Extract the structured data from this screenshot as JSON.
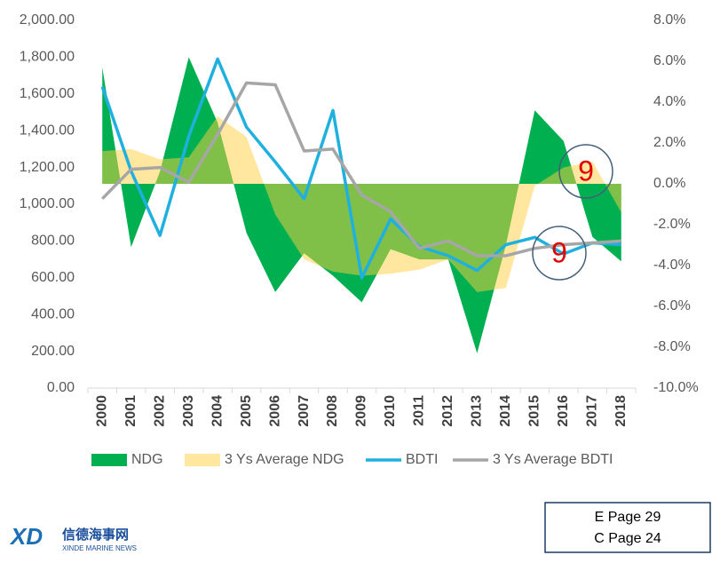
{
  "chart_data": {
    "type": "area_line",
    "categories": [
      "2000",
      "2001",
      "2002",
      "2003",
      "2004",
      "2005",
      "2006",
      "2007",
      "2008",
      "2009",
      "2010",
      "2011",
      "2012",
      "2013",
      "2014",
      "2015",
      "2016",
      "2017",
      "2018"
    ],
    "series": [
      {
        "name": "NDG",
        "kind": "area",
        "axis": "y2",
        "color": "#00b050",
        "values": [
          5.7,
          -3.1,
          0.6,
          6.2,
          3.0,
          -2.4,
          -5.3,
          -3.4,
          -4.5,
          -5.8,
          -3.2,
          -3.7,
          -3.7,
          -8.3,
          -3.0,
          3.6,
          2.1,
          -2.6,
          -3.8
        ]
      },
      {
        "name": "3 Ys Average NDG",
        "kind": "area",
        "axis": "y2",
        "color": "#ffd040",
        "values": [
          1.6,
          1.7,
          1.2,
          1.3,
          3.3,
          2.3,
          -1.5,
          -3.7,
          -4.3,
          -4.5,
          -4.4,
          -4.2,
          -3.7,
          -5.3,
          -5.1,
          -0.1,
          0.8,
          1.1,
          -1.4
        ]
      },
      {
        "name": "BDTI",
        "kind": "line",
        "axis": "y",
        "color": "#1fb0e0",
        "values": [
          1640,
          1180,
          830,
          1370,
          1790,
          1420,
          1230,
          1030,
          1510,
          600,
          920,
          770,
          720,
          640,
          780,
          820,
          730,
          790,
          780
        ]
      },
      {
        "name": "3 Ys Average BDTI",
        "kind": "line",
        "axis": "y",
        "color": "#a6a6a6",
        "values": [
          1030,
          1190,
          1200,
          1120,
          1380,
          1660,
          1650,
          1290,
          1300,
          1050,
          960,
          760,
          800,
          720,
          720,
          760,
          780,
          790,
          800
        ]
      }
    ],
    "ylim": [
      0,
      2000
    ],
    "yticks": [
      {
        "value": 0,
        "label": "0.00"
      },
      {
        "value": 200,
        "label": "200.00"
      },
      {
        "value": 400,
        "label": "400.00"
      },
      {
        "value": 600,
        "label": "600.00"
      },
      {
        "value": 800,
        "label": "800.00"
      },
      {
        "value": 1000,
        "label": "1,000.00"
      },
      {
        "value": 1200,
        "label": "1,200.00"
      },
      {
        "value": 1400,
        "label": "1,400.00"
      },
      {
        "value": 1600,
        "label": "1,600.00"
      },
      {
        "value": 1800,
        "label": "1,800.00"
      },
      {
        "value": 2000,
        "label": "2,000.00"
      }
    ],
    "y2lim": [
      -10,
      8
    ],
    "y2ticks": [
      {
        "value": -10,
        "label": "-10.0%"
      },
      {
        "value": -8,
        "label": "-8.0%"
      },
      {
        "value": -6,
        "label": "-6.0%"
      },
      {
        "value": -4,
        "label": "-4.0%"
      },
      {
        "value": -2,
        "label": "-2.0%"
      },
      {
        "value": 0,
        "label": "0.0%"
      },
      {
        "value": 2,
        "label": "2.0%"
      },
      {
        "value": 4,
        "label": "4.0%"
      },
      {
        "value": 6,
        "label": "6.0%"
      },
      {
        "value": 8,
        "label": "8.0%"
      }
    ],
    "legend": "bottom",
    "annotations": [
      {
        "text": "9"
      },
      {
        "text": "9"
      }
    ]
  },
  "logo": {
    "mark": "XD",
    "name": "信德海事网",
    "subtitle": "XINDE MARINE NEWS"
  },
  "page_box": [
    "E Page 29",
    "C Page 24"
  ]
}
